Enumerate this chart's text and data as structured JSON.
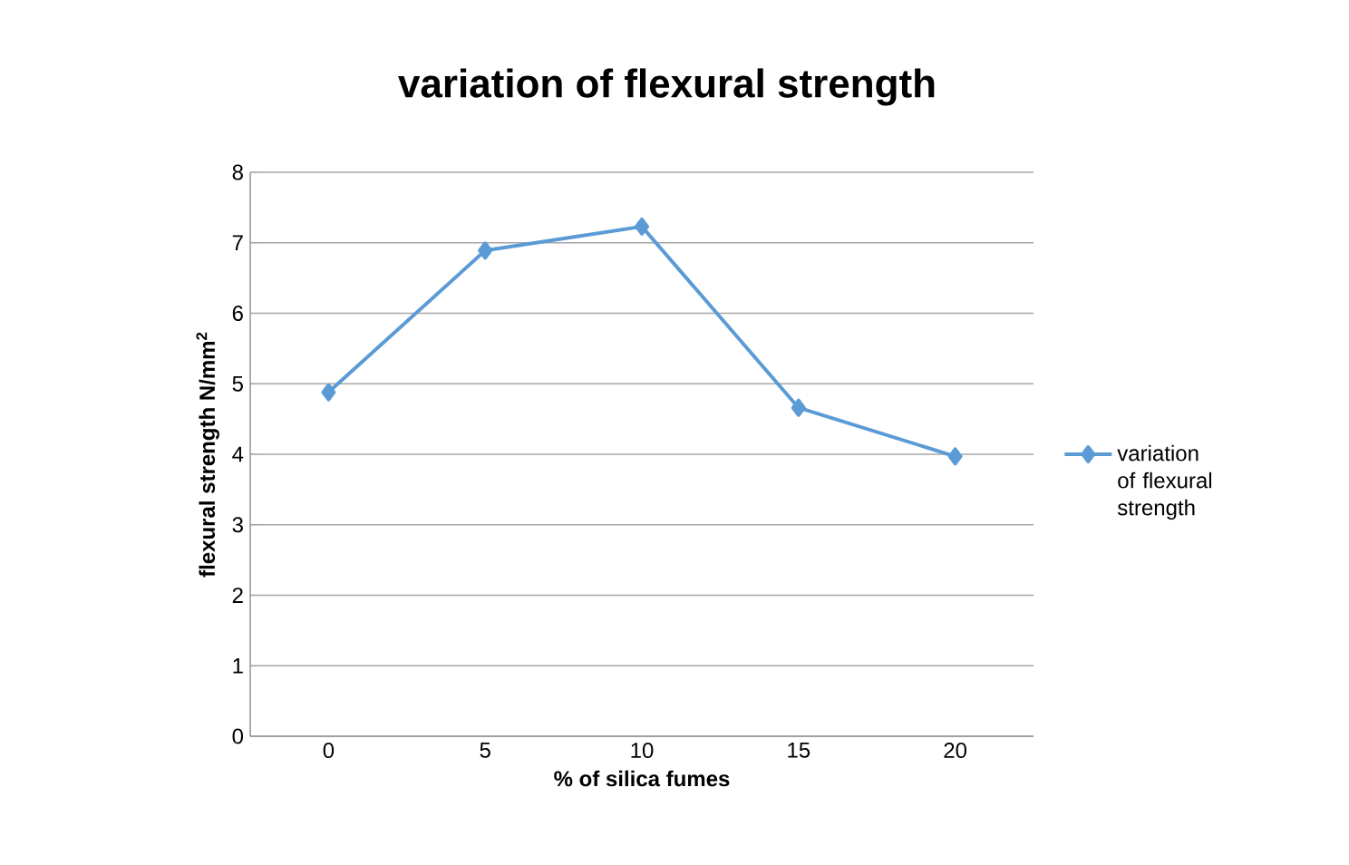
{
  "chart_data": {
    "type": "line",
    "title": "variation of flexural strength",
    "xlabel": "% of silica fumes",
    "ylabel": "flexural strength N/mm$^{2}$",
    "categories": [
      "0",
      "5",
      "10",
      "15",
      "20"
    ],
    "series": [
      {
        "name": "variation of flexural strength",
        "color": "#5b9bd5",
        "values": [
          4.88,
          6.89,
          7.23,
          4.66,
          3.97
        ]
      }
    ],
    "ylim": [
      0,
      8
    ],
    "yticks": [
      0,
      1,
      2,
      3,
      4,
      5,
      6,
      7,
      8
    ],
    "grid": "y",
    "legend": "right",
    "marker": "diamond",
    "line_style": "solid"
  }
}
